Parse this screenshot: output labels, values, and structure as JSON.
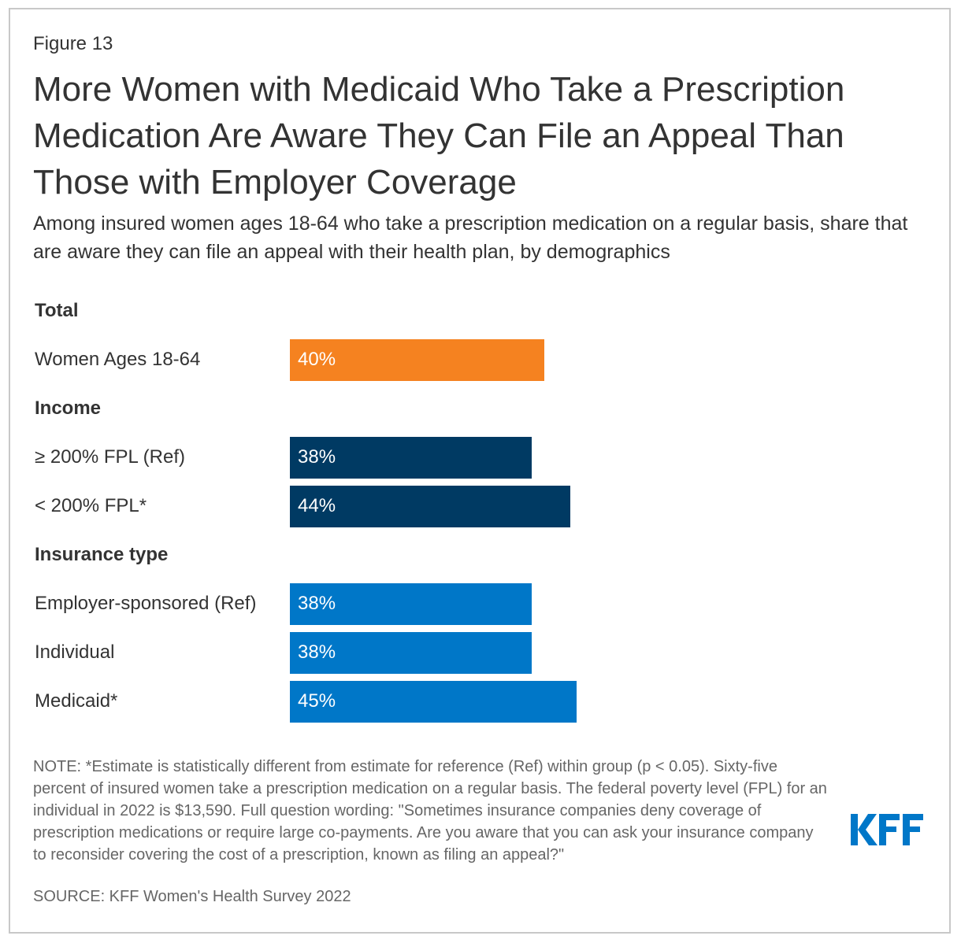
{
  "figure_label": "Figure 13",
  "title": "More Women with Medicaid Who Take a Prescription Medication Are Aware They Can File an Appeal Than Those with Employer Coverage",
  "subtitle": "Among insured women ages 18-64 who take a prescription medication on a regular basis, share that are aware they can file an appeal with their health plan, by demographics",
  "colors": {
    "total": "#F58220",
    "income": "#003A63",
    "insurance": "#0077C8",
    "logo": "#0077C8"
  },
  "chart_data": {
    "type": "bar",
    "orientation": "horizontal",
    "title": "More Women with Medicaid Who Take a Prescription Medication Are Aware They Can File an Appeal Than Those with Employer Coverage",
    "xlabel": "",
    "ylabel": "",
    "xlim": [
      0,
      100
    ],
    "unit": "%",
    "groups": [
      {
        "name": "Total",
        "color": "#F58220",
        "items": [
          {
            "label": "Women Ages 18-64",
            "value": 40,
            "value_label": "40%"
          }
        ]
      },
      {
        "name": "Income",
        "color": "#003A63",
        "items": [
          {
            "label": "≥ 200% FPL (Ref)",
            "value": 38,
            "value_label": "38%"
          },
          {
            "label": "< 200% FPL*",
            "value": 44,
            "value_label": "44%"
          }
        ]
      },
      {
        "name": "Insurance type",
        "color": "#0077C8",
        "items": [
          {
            "label": "Employer-sponsored (Ref)",
            "value": 38,
            "value_label": "38%"
          },
          {
            "label": "Individual",
            "value": 38,
            "value_label": "38%"
          },
          {
            "label": "Medicaid*",
            "value": 45,
            "value_label": "45%"
          }
        ]
      }
    ]
  },
  "note": "NOTE: *Estimate is statistically different from estimate for reference (Ref) within group (p < 0.05). Sixty-five percent of insured women take a prescription medication on a regular basis. The federal poverty level (FPL) for an individual in 2022 is $13,590. Full question wording: \"Sometimes insurance companies deny coverage of prescription medications or require large co-payments. Are you aware that you can ask your insurance company to reconsider covering the cost of a prescription, known as filing an appeal?\"",
  "source": "SOURCE: KFF Women's Health Survey 2022",
  "logo_text": "KFF"
}
